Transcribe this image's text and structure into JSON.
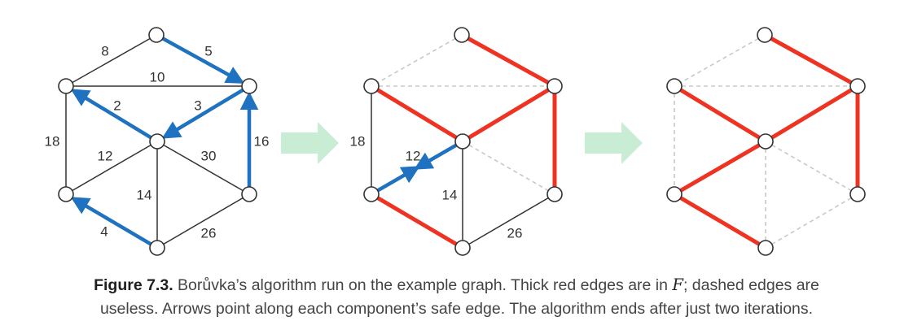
{
  "colors": {
    "normal_edge": "#333333",
    "red_edge": "#ee3322",
    "blue_arrow": "#1f72c0",
    "dashed_edge": "#c8c8c8",
    "stage_arrow": "#c9ecd4",
    "node_fill": "#ffffff",
    "node_stroke": "#333333"
  },
  "graph_stages": [
    {
      "name": "iteration-0",
      "edges": [
        {
          "u": "top",
          "v": "ul",
          "kind": "normal",
          "weight": "8"
        },
        {
          "u": "top",
          "v": "ur",
          "kind": "blue",
          "weight": "5",
          "arrow_to": "ur"
        },
        {
          "u": "ul",
          "v": "ur",
          "kind": "normal",
          "weight": "10"
        },
        {
          "u": "ul",
          "v": "c",
          "kind": "blue",
          "weight": "2",
          "arrow_to": "ul"
        },
        {
          "u": "c",
          "v": "ur",
          "kind": "blue",
          "weight": "3",
          "arrow_to": "c"
        },
        {
          "u": "ul",
          "v": "ll",
          "kind": "normal",
          "weight": "18"
        },
        {
          "u": "ur",
          "v": "lr",
          "kind": "blue",
          "weight": "16",
          "arrow_to": "ur"
        },
        {
          "u": "c",
          "v": "ll",
          "kind": "normal",
          "weight": "12"
        },
        {
          "u": "c",
          "v": "lr",
          "kind": "normal",
          "weight": "30"
        },
        {
          "u": "c",
          "v": "bot",
          "kind": "normal",
          "weight": "14"
        },
        {
          "u": "ll",
          "v": "bot",
          "kind": "blue",
          "weight": "4",
          "arrow_to": "ll"
        },
        {
          "u": "lr",
          "v": "bot",
          "kind": "normal",
          "weight": "26"
        }
      ]
    },
    {
      "name": "iteration-1",
      "edges": [
        {
          "u": "top",
          "v": "ul",
          "kind": "dashed",
          "weight": ""
        },
        {
          "u": "top",
          "v": "ur",
          "kind": "red",
          "weight": ""
        },
        {
          "u": "ul",
          "v": "ur",
          "kind": "dashed",
          "weight": ""
        },
        {
          "u": "ul",
          "v": "c",
          "kind": "red",
          "weight": ""
        },
        {
          "u": "c",
          "v": "ur",
          "kind": "red",
          "weight": ""
        },
        {
          "u": "ul",
          "v": "ll",
          "kind": "normal",
          "weight": "18"
        },
        {
          "u": "ur",
          "v": "lr",
          "kind": "red",
          "weight": ""
        },
        {
          "u": "c",
          "v": "ll",
          "kind": "blue",
          "weight": "12",
          "arrow_both": true
        },
        {
          "u": "c",
          "v": "lr",
          "kind": "dashed",
          "weight": ""
        },
        {
          "u": "c",
          "v": "bot",
          "kind": "normal",
          "weight": "14"
        },
        {
          "u": "ll",
          "v": "bot",
          "kind": "red",
          "weight": ""
        },
        {
          "u": "lr",
          "v": "bot",
          "kind": "normal",
          "weight": "26"
        }
      ]
    },
    {
      "name": "iteration-2",
      "edges": [
        {
          "u": "top",
          "v": "ul",
          "kind": "dashed",
          "weight": ""
        },
        {
          "u": "top",
          "v": "ur",
          "kind": "red",
          "weight": ""
        },
        {
          "u": "ul",
          "v": "ur",
          "kind": "dashed",
          "weight": ""
        },
        {
          "u": "ul",
          "v": "c",
          "kind": "red",
          "weight": ""
        },
        {
          "u": "c",
          "v": "ur",
          "kind": "red",
          "weight": ""
        },
        {
          "u": "ul",
          "v": "ll",
          "kind": "dashed",
          "weight": ""
        },
        {
          "u": "ur",
          "v": "lr",
          "kind": "red",
          "weight": ""
        },
        {
          "u": "c",
          "v": "ll",
          "kind": "red",
          "weight": ""
        },
        {
          "u": "c",
          "v": "lr",
          "kind": "dashed",
          "weight": ""
        },
        {
          "u": "c",
          "v": "bot",
          "kind": "dashed",
          "weight": ""
        },
        {
          "u": "ll",
          "v": "bot",
          "kind": "red",
          "weight": ""
        },
        {
          "u": "lr",
          "v": "bot",
          "kind": "dashed",
          "weight": ""
        }
      ]
    }
  ],
  "caption": {
    "label": "Figure 7.3.",
    "line1_a": " Borůvka’s algorithm run on the example graph. Thick red edges are in ",
    "math_F": "F",
    "line1_b": "; dashed edges are",
    "line2": "useless. Arrows point along each component’s safe edge. The algorithm ends after just two iterations."
  }
}
